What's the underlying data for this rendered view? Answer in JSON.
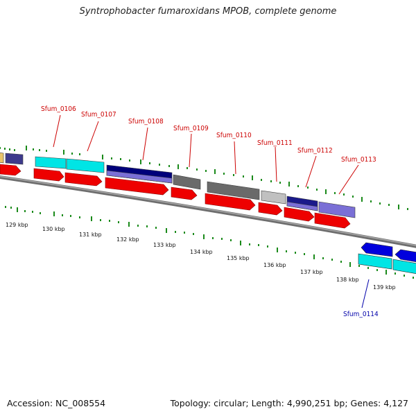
{
  "title": "Syntrophobacter fumaroxidans MPOB, complete genome",
  "footer": {
    "accession": "Accession: NC_008554",
    "stats": "Topology: circular; Length: 4,990,251 bp; Genes: 4,127"
  },
  "gene_labels": [
    {
      "id": "sfum-0106",
      "text": "Sfum_0106",
      "color": "#cc0000"
    },
    {
      "id": "sfum-0107",
      "text": "Sfum_0107",
      "color": "#cc0000"
    },
    {
      "id": "sfum-0108",
      "text": "Sfum_0108",
      "color": "#cc0000"
    },
    {
      "id": "sfum-0109",
      "text": "Sfum_0109",
      "color": "#cc0000"
    },
    {
      "id": "sfum-0110",
      "text": "Sfum_0110",
      "color": "#cc0000"
    },
    {
      "id": "sfum-0111",
      "text": "Sfum_0111",
      "color": "#cc0000"
    },
    {
      "id": "sfum-0112",
      "text": "Sfum_0112",
      "color": "#cc0000"
    },
    {
      "id": "sfum-0113",
      "text": "Sfum_0113",
      "color": "#cc0000"
    },
    {
      "id": "sfum-0114",
      "text": "Sfum_0114",
      "color": "#0000aa"
    }
  ],
  "ticks": [
    "129 kbp",
    "130 kbp",
    "131 kbp",
    "132 kbp",
    "133 kbp",
    "134 kbp",
    "135 kbp",
    "136 kbp",
    "137 kbp",
    "138 kbp",
    "139 kbp"
  ],
  "colors": {
    "cds": "#ee0000",
    "cyan": "#00e5e5",
    "navy": "#00007a",
    "slate": "#7a6fd6",
    "darkslate": "#3d3a8c",
    "gray": "#6a6a6a",
    "lightgray": "#c0c0c0",
    "blue": "#0000dd",
    "tick_green": "#1a8a1a",
    "backbone": "#8a8a8a"
  }
}
